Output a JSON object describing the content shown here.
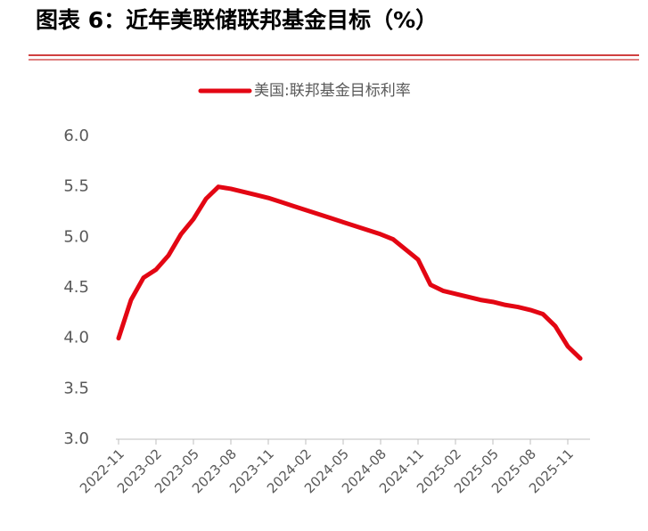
{
  "chart_data": {
    "type": "line",
    "title": "图表 6：近年美联储联邦基金目标（%）",
    "x": [
      "2022-11",
      "2022-12",
      "2023-01",
      "2023-02",
      "2023-03",
      "2023-04",
      "2023-05",
      "2023-06",
      "2023-07",
      "2023-08",
      "2023-09",
      "2023-10",
      "2023-11",
      "2023-12",
      "2024-01",
      "2024-02",
      "2024-03",
      "2024-04",
      "2024-05",
      "2024-06",
      "2024-07",
      "2024-08",
      "2024-09",
      "2024-10",
      "2024-11",
      "2024-12",
      "2025-01",
      "2025-02",
      "2025-03",
      "2025-04",
      "2025-05",
      "2025-06",
      "2025-07",
      "2025-08",
      "2025-09",
      "2025-10",
      "2025-11",
      "2025-12"
    ],
    "series": [
      {
        "name": "美国:联邦基金目标利率",
        "color": "#e30613",
        "values": [
          4.0,
          4.38,
          4.6,
          4.68,
          4.82,
          5.03,
          5.18,
          5.38,
          5.5,
          5.48,
          5.45,
          5.42,
          5.39,
          5.35,
          5.31,
          5.27,
          5.23,
          5.19,
          5.15,
          5.11,
          5.07,
          5.03,
          4.98,
          4.88,
          4.78,
          4.53,
          4.47,
          4.44,
          4.41,
          4.38,
          4.36,
          4.33,
          4.31,
          4.28,
          4.24,
          4.12,
          3.92,
          3.8
        ]
      }
    ],
    "xticks": [
      "2022-11",
      "2023-02",
      "2023-05",
      "2023-08",
      "2023-11",
      "2024-02",
      "2024-05",
      "2024-08",
      "2024-11",
      "2025-02",
      "2025-05",
      "2025-08",
      "2025-11"
    ],
    "ylim": [
      3,
      6
    ],
    "yticks": [
      {
        "value": 3,
        "label": "3.0"
      },
      {
        "value": 3.5,
        "label": "3.5"
      },
      {
        "value": 4,
        "label": "4.0"
      },
      {
        "value": 4.5,
        "label": "4.5"
      },
      {
        "value": 5,
        "label": "5.0"
      },
      {
        "value": 5.5,
        "label": "5.5"
      },
      {
        "value": 6,
        "label": "6.0"
      }
    ],
    "legend": "top"
  }
}
